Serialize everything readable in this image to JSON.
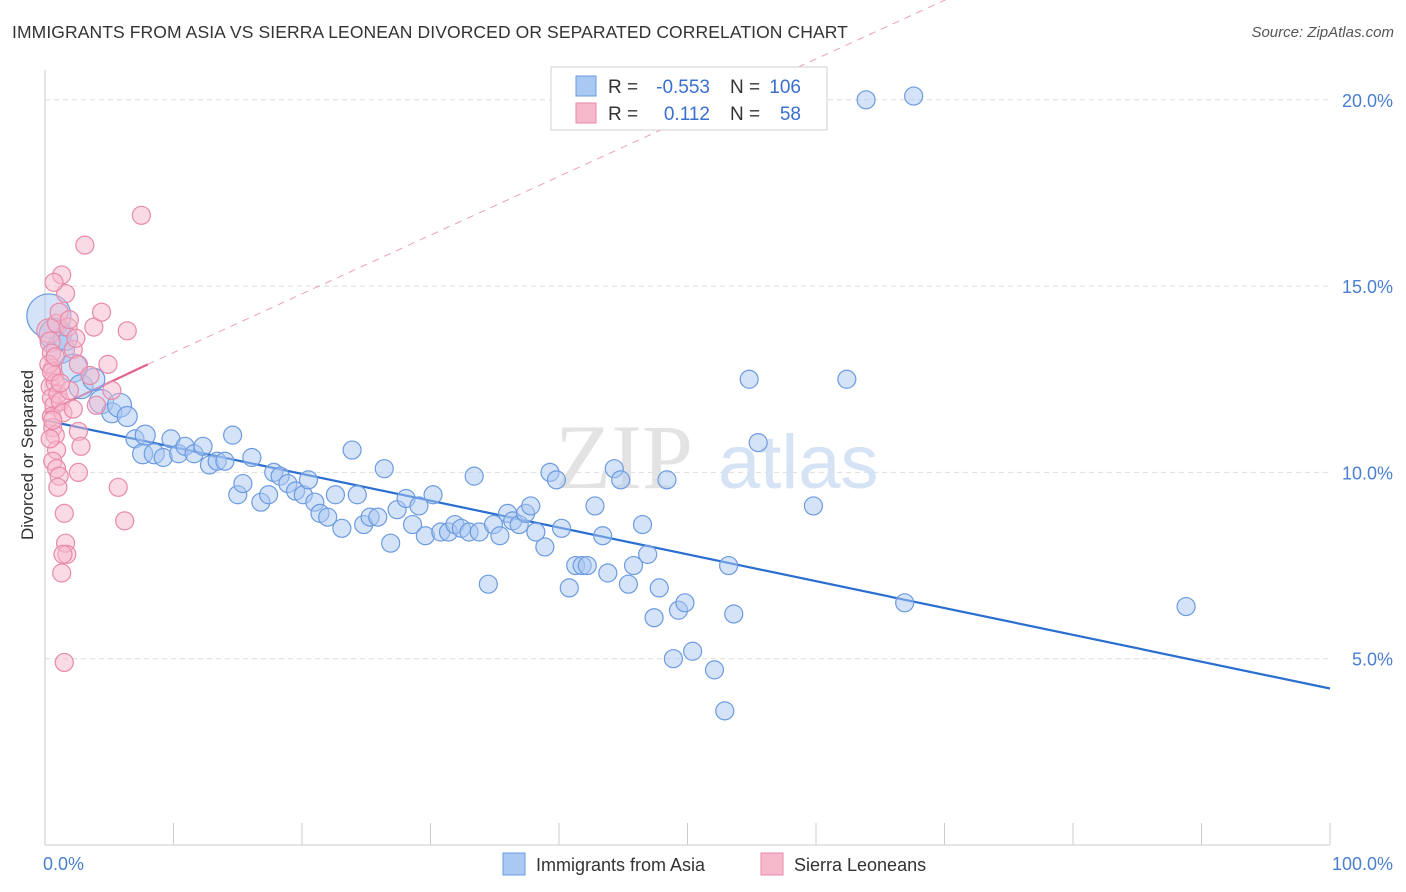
{
  "title": "IMMIGRANTS FROM ASIA VS SIERRA LEONEAN DIVORCED OR SEPARATED CORRELATION CHART",
  "source": "Source: ZipAtlas.com",
  "watermark": {
    "zip": "ZIP",
    "atlas": "atlas"
  },
  "colors": {
    "blue_fill": "#a9c8f2",
    "blue_stroke": "#6c9be0",
    "blue_line": "#2a6fd0",
    "pink_fill": "#f6b8cb",
    "pink_stroke": "#e88aa8",
    "pink_line": "#e0608e",
    "tick_text": "#4a7fcf",
    "grid": "#dddddd"
  },
  "legend": {
    "rows": [
      {
        "r_label": "R =",
        "r_value": "-0.553",
        "n_label": "N =",
        "n_value": "106"
      },
      {
        "r_label": "R =",
        "r_value": "0.112",
        "n_label": "N =",
        "n_value": "58"
      }
    ]
  },
  "chart_data": {
    "type": "scatter",
    "title": "IMMIGRANTS FROM ASIA VS SIERRA LEONEAN DIVORCED OR SEPARATED CORRELATION CHART",
    "xlabel": "",
    "ylabel": "Divorced or Separated",
    "xlim": [
      0,
      100
    ],
    "ylim": [
      0,
      20.8
    ],
    "x_tick_labels": [
      "0.0%",
      "100.0%"
    ],
    "y_ticks": [
      5,
      10,
      15,
      20
    ],
    "y_tick_labels": [
      "5.0%",
      "10.0%",
      "15.0%",
      "20.0%"
    ],
    "grid": true,
    "legend_placement": "bottom",
    "series": [
      {
        "name": "Immigrants from Asia",
        "color": "#a9c8f2",
        "trend": {
          "x": [
            0,
            100
          ],
          "y": [
            11.4,
            4.2
          ],
          "style": "solid"
        },
        "points": [
          [
            0.3,
            14.2,
            22
          ],
          [
            0.8,
            13.7,
            16
          ],
          [
            1.2,
            13.3,
            14
          ],
          [
            1.6,
            13.6,
            12
          ],
          [
            2.2,
            12.8,
            14
          ],
          [
            2.8,
            12.3,
            12
          ],
          [
            3.8,
            12.5,
            11
          ],
          [
            4.4,
            11.9,
            12
          ],
          [
            5.2,
            11.6,
            10
          ],
          [
            5.8,
            11.8,
            12
          ],
          [
            6.4,
            11.5,
            10
          ],
          [
            7.0,
            10.9,
            9
          ],
          [
            7.6,
            10.5,
            10
          ],
          [
            7.8,
            11.0,
            10
          ],
          [
            8.5,
            10.5,
            10
          ],
          [
            9.2,
            10.4,
            9
          ],
          [
            9.8,
            10.9,
            9
          ],
          [
            10.4,
            10.5,
            9
          ],
          [
            10.9,
            10.7,
            9
          ],
          [
            11.6,
            10.5,
            9
          ],
          [
            12.3,
            10.7,
            9
          ],
          [
            12.8,
            10.2,
            9
          ],
          [
            13.4,
            10.3,
            9
          ],
          [
            14.0,
            10.3,
            9
          ],
          [
            14.6,
            11.0,
            9
          ],
          [
            15.0,
            9.4,
            9
          ],
          [
            15.4,
            9.7,
            9
          ],
          [
            16.1,
            10.4,
            9
          ],
          [
            16.8,
            9.2,
            9
          ],
          [
            17.4,
            9.4,
            9
          ],
          [
            17.8,
            10.0,
            9
          ],
          [
            18.3,
            9.9,
            9
          ],
          [
            18.9,
            9.7,
            9
          ],
          [
            19.5,
            9.5,
            9
          ],
          [
            20.1,
            9.4,
            9
          ],
          [
            20.5,
            9.8,
            9
          ],
          [
            21.0,
            9.2,
            9
          ],
          [
            21.4,
            8.9,
            9
          ],
          [
            22.0,
            8.8,
            9
          ],
          [
            22.6,
            9.4,
            9
          ],
          [
            23.1,
            8.5,
            9
          ],
          [
            23.9,
            10.6,
            9
          ],
          [
            24.3,
            9.4,
            9
          ],
          [
            24.8,
            8.6,
            9
          ],
          [
            25.3,
            8.8,
            9
          ],
          [
            25.9,
            8.8,
            9
          ],
          [
            26.4,
            10.1,
            9
          ],
          [
            26.9,
            8.1,
            9
          ],
          [
            27.4,
            9.0,
            9
          ],
          [
            28.1,
            9.3,
            9
          ],
          [
            28.6,
            8.6,
            9
          ],
          [
            29.1,
            9.1,
            9
          ],
          [
            29.6,
            8.3,
            9
          ],
          [
            30.2,
            9.4,
            9
          ],
          [
            30.8,
            8.4,
            9
          ],
          [
            31.4,
            8.4,
            9
          ],
          [
            31.9,
            8.6,
            9
          ],
          [
            32.4,
            8.5,
            9
          ],
          [
            33.0,
            8.4,
            9
          ],
          [
            33.4,
            9.9,
            9
          ],
          [
            33.8,
            8.4,
            9
          ],
          [
            34.5,
            7.0,
            9
          ],
          [
            34.9,
            8.6,
            9
          ],
          [
            35.4,
            8.3,
            9
          ],
          [
            36.0,
            8.9,
            9
          ],
          [
            36.4,
            8.7,
            9
          ],
          [
            36.9,
            8.6,
            9
          ],
          [
            37.4,
            8.9,
            9
          ],
          [
            37.8,
            9.1,
            9
          ],
          [
            38.2,
            8.4,
            9
          ],
          [
            38.9,
            8.0,
            9
          ],
          [
            39.3,
            10.0,
            9
          ],
          [
            39.8,
            9.8,
            9
          ],
          [
            40.2,
            8.5,
            9
          ],
          [
            40.8,
            6.9,
            9
          ],
          [
            41.3,
            7.5,
            9
          ],
          [
            41.8,
            7.5,
            9
          ],
          [
            42.2,
            7.5,
            9
          ],
          [
            42.8,
            9.1,
            9
          ],
          [
            43.4,
            8.3,
            9
          ],
          [
            43.8,
            7.3,
            9
          ],
          [
            44.3,
            10.1,
            9
          ],
          [
            44.8,
            9.8,
            9
          ],
          [
            45.4,
            7.0,
            9
          ],
          [
            45.8,
            7.5,
            9
          ],
          [
            46.5,
            8.6,
            9
          ],
          [
            46.9,
            7.8,
            9
          ],
          [
            47.4,
            6.1,
            9
          ],
          [
            47.8,
            6.9,
            9
          ],
          [
            48.4,
            9.8,
            9
          ],
          [
            48.9,
            5.0,
            9
          ],
          [
            49.3,
            6.3,
            9
          ],
          [
            49.8,
            6.5,
            9
          ],
          [
            50.4,
            5.2,
            9
          ],
          [
            52.1,
            4.7,
            9
          ],
          [
            52.9,
            3.6,
            9
          ],
          [
            53.2,
            7.5,
            9
          ],
          [
            53.6,
            6.2,
            9
          ],
          [
            54.8,
            12.5,
            9
          ],
          [
            55.5,
            10.8,
            9
          ],
          [
            59.8,
            9.1,
            9
          ],
          [
            62.4,
            12.5,
            9
          ],
          [
            63.9,
            20.0,
            9
          ],
          [
            66.9,
            6.5,
            9
          ],
          [
            88.8,
            6.4,
            9
          ],
          [
            67.6,
            20.1,
            9
          ]
        ]
      },
      {
        "name": "Sierra Leoneans",
        "color": "#f6b8cb",
        "trend": {
          "x": [
            0,
            8.0,
            100
          ],
          "y": [
            11.6,
            12.9,
            27.4
          ],
          "style": "solid-then-dashed"
        },
        "points": [
          [
            0.3,
            13.8,
            12
          ],
          [
            0.4,
            13.5,
            10
          ],
          [
            0.5,
            13.2,
            9
          ],
          [
            0.6,
            12.8,
            9
          ],
          [
            0.4,
            12.3,
            9
          ],
          [
            0.5,
            12.0,
            9
          ],
          [
            0.7,
            11.8,
            9
          ],
          [
            0.5,
            11.5,
            9
          ],
          [
            0.6,
            11.2,
            9
          ],
          [
            0.8,
            11.0,
            9
          ],
          [
            0.9,
            10.6,
            9
          ],
          [
            0.6,
            10.3,
            9
          ],
          [
            0.9,
            10.1,
            9
          ],
          [
            1.1,
            9.9,
            9
          ],
          [
            1.0,
            9.6,
            9
          ],
          [
            0.7,
            12.6,
            9
          ],
          [
            0.8,
            12.4,
            9
          ],
          [
            1.0,
            12.1,
            9
          ],
          [
            1.2,
            11.9,
            9
          ],
          [
            1.4,
            11.6,
            9
          ],
          [
            0.9,
            14.0,
            9
          ],
          [
            1.1,
            14.3,
            9
          ],
          [
            1.3,
            15.3,
            9
          ],
          [
            1.6,
            14.8,
            9
          ],
          [
            0.7,
            15.1,
            9
          ],
          [
            1.8,
            13.9,
            9
          ],
          [
            2.2,
            13.3,
            9
          ],
          [
            2.6,
            12.9,
            9
          ],
          [
            1.9,
            12.2,
            9
          ],
          [
            2.2,
            11.7,
            9
          ],
          [
            2.6,
            11.1,
            9
          ],
          [
            2.8,
            10.7,
            9
          ],
          [
            2.6,
            10.0,
            9
          ],
          [
            3.1,
            16.1,
            9
          ],
          [
            3.8,
            13.9,
            9
          ],
          [
            4.4,
            14.3,
            9
          ],
          [
            4.9,
            12.9,
            9
          ],
          [
            5.2,
            12.2,
            9
          ],
          [
            5.7,
            9.6,
            9
          ],
          [
            6.2,
            8.7,
            9
          ],
          [
            6.4,
            13.8,
            9
          ],
          [
            7.5,
            16.9,
            9
          ],
          [
            1.5,
            8.9,
            9
          ],
          [
            1.6,
            8.1,
            9
          ],
          [
            1.7,
            7.8,
            9
          ],
          [
            1.4,
            7.8,
            9
          ],
          [
            1.3,
            7.3,
            9
          ],
          [
            1.5,
            4.9,
            9
          ],
          [
            0.3,
            12.9,
            9
          ],
          [
            0.5,
            12.7,
            9
          ],
          [
            0.8,
            13.1,
            9
          ],
          [
            1.2,
            12.4,
            9
          ],
          [
            0.6,
            11.4,
            9
          ],
          [
            0.4,
            10.9,
            9
          ],
          [
            3.5,
            12.6,
            9
          ],
          [
            4.0,
            11.8,
            9
          ],
          [
            2.4,
            13.6,
            9
          ],
          [
            1.9,
            14.1,
            9
          ]
        ]
      }
    ]
  }
}
